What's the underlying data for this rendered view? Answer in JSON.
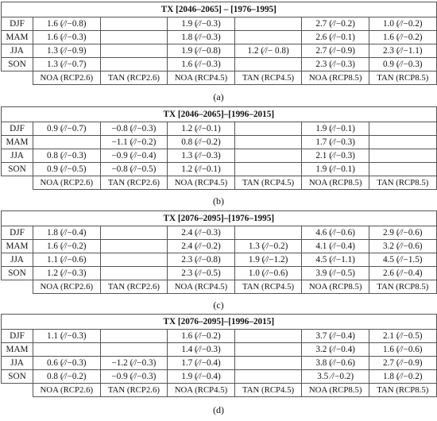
{
  "panels": [
    {
      "title": "TX [2046–2065] – [1976–1995]",
      "caption": "(a)",
      "rows": [
        {
          "season": "DJF",
          "cells": [
            "1.6 (⁄/−0.8)",
            "",
            "1.9 (⁄/−0.3)",
            "",
            "2.7 (⁄/−0.2)",
            "1.0 (⁄/−0.2)"
          ]
        },
        {
          "season": "MAM",
          "cells": [
            "1.6 (⁄/−0.3)",
            "",
            "1.8 (⁄/−0.3)",
            "",
            "2.6 (⁄/−0.1)",
            "1.6 (⁄/−0.2)"
          ]
        },
        {
          "season": "JJA",
          "cells": [
            "1.3 (⁄/−0.9)",
            "",
            "1.9 (⁄/−0.8)",
            "1.2 (⁄/− 0.8)",
            "2.7 (⁄/−0.9)",
            "2.3 (⁄/−1.1)"
          ]
        },
        {
          "season": "SON",
          "cells": [
            "1.3 (⁄/−0.7)",
            "",
            "1.6 (⁄/−0.3)",
            "",
            "2.3 (⁄/−0.3)",
            "0.9 (⁄/−0.3)"
          ]
        }
      ]
    },
    {
      "title": "TX [2046–2065]–[1996–2015]",
      "caption": "(b)",
      "rows": [
        {
          "season": "DJF",
          "cells": [
            "0.9 (⁄/−0.7)",
            "−0.8 (⁄/−0.3)",
            "1.2 (⁄/−0.1)",
            "",
            "1.9 (⁄/−0.1)",
            ""
          ]
        },
        {
          "season": "MAM",
          "cells": [
            "",
            "−1.1 (⁄/−0.2)",
            "0.8 (⁄/−0.2)",
            "",
            "1.7 (⁄/−0.3)",
            ""
          ]
        },
        {
          "season": "JJA",
          "cells": [
            "0.8 (⁄/−0.3)",
            "−0.9 (⁄/−0.4)",
            "1.3 (⁄/−0.3)",
            "",
            "2.1 (⁄/−0.3)",
            ""
          ]
        },
        {
          "season": "SON",
          "cells": [
            "0.9 (⁄/−0.5)",
            "−0.8 (⁄/−0.5)",
            "1.2 (⁄/−0.1)",
            "",
            "1.9 (⁄/−0.1)",
            ""
          ]
        }
      ]
    },
    {
      "title": "TX [2076–2095]–[1976–1995]",
      "caption": "(c)",
      "rows": [
        {
          "season": "DJF",
          "cells": [
            "1.8 (⁄/−0.4)",
            "",
            "2.4 (⁄/−0.3)",
            "",
            "4.6 (⁄/−0.6)",
            "2.9 (⁄/−0.6)"
          ]
        },
        {
          "season": "MAM",
          "cells": [
            "1.6 (⁄/−0.2)",
            "",
            "2.4 (⁄/−0.2)",
            "1.3 (⁄/−0.2)",
            "4.1 (⁄/−0.4)",
            "3.2 (⁄/−0.6)"
          ]
        },
        {
          "season": "JJA",
          "cells": [
            "1.1 (⁄/−0.6)",
            "",
            "2.3 (⁄/−0.8)",
            "1.9 (⁄/−1.2)",
            "4.5 (⁄/−1.1)",
            "4.5 (⁄/−1.5)"
          ]
        },
        {
          "season": "SON",
          "cells": [
            "1.2 (⁄/−0.3)",
            "",
            "2.3 (⁄/−0.5)",
            "1.0 (⁄/−0.6)",
            "3.9 (⁄/−0.5)",
            "2.6 (⁄/−0.4)"
          ]
        }
      ]
    },
    {
      "title": "TX [2076–2095]–[1996–2015]",
      "caption": "(d)",
      "rows": [
        {
          "season": "DJF",
          "cells": [
            "1.1 (⁄/−0.3)",
            "",
            "1.6 (⁄/−0.2)",
            "",
            "3.7 (⁄/−0.4)",
            "2.1 (⁄/−0.5)"
          ]
        },
        {
          "season": "MAM",
          "cells": [
            "",
            "",
            "1.4 (⁄/−0.3)",
            "",
            "3.2 (⁄/−0.4)",
            "1.6 (⁄/−0.6)"
          ]
        },
        {
          "season": "JJA",
          "cells": [
            "0.6 (⁄/−0.3)",
            "−1.2 (⁄/−0.3)",
            "1.7 (⁄/−0.4)",
            "",
            "3.8 (⁄/−0.6)",
            "2.7 (⁄/−0.9)"
          ]
        },
        {
          "season": "SON",
          "cells": [
            "0.8 (⁄/−0.2)",
            "−0.9 (⁄/−0.3)",
            "1.9 (⁄/−0.4)",
            "",
            "3.5 ⁄/−0.2)",
            "1.8 (⁄/−0.2)"
          ]
        }
      ]
    }
  ],
  "columns": [
    "NOA (RCP2.6)",
    "TAN (RCP2.6)",
    "NOA (RCP4.5)",
    "TAN (RCP4.5)",
    "NOA (RCP8.5)",
    "TAN (RCP8.5)"
  ]
}
